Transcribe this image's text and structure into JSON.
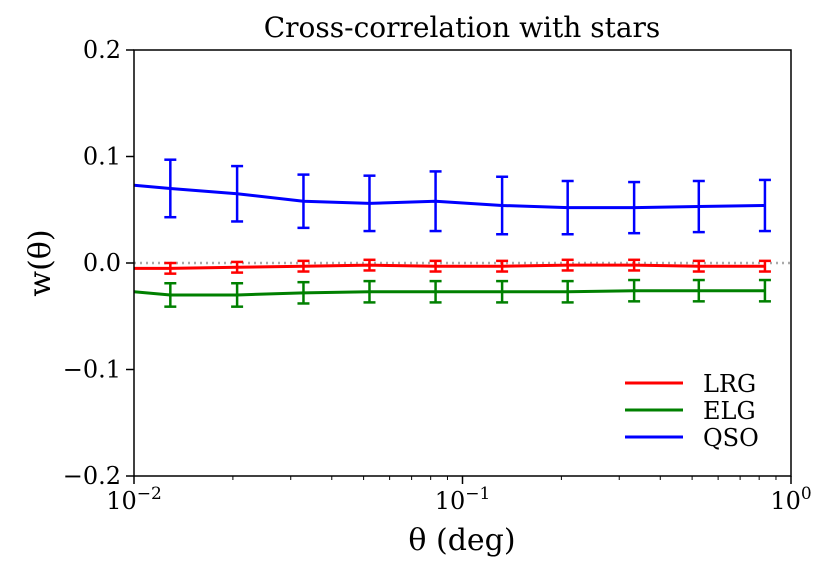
{
  "chart_data": {
    "type": "line",
    "title": "Cross-correlation with stars",
    "xlabel": "θ  (deg)",
    "ylabel": "w(θ)",
    "xscale": "log",
    "xlim": [
      0.01,
      1
    ],
    "ylim": [
      -0.2,
      0.2
    ],
    "x_ticks": [
      {
        "value": 0.01,
        "base": "10",
        "exp": "−2"
      },
      {
        "value": 0.1,
        "base": "10",
        "exp": "−1"
      },
      {
        "value": 1,
        "base": "10",
        "exp": "0"
      }
    ],
    "y_ticks": [
      {
        "value": 0.2,
        "label": "0.2"
      },
      {
        "value": 0.1,
        "label": "0.1"
      },
      {
        "value": 0.0,
        "label": "0.0"
      },
      {
        "value": -0.1,
        "label": "−0.1"
      },
      {
        "value": -0.2,
        "label": "−0.2"
      }
    ],
    "reference_line": {
      "y": 0.0,
      "style": "dotted",
      "color": "#aaaaaa"
    },
    "line_start_x": 0.01,
    "x_errbars": [
      0.0129,
      0.0206,
      0.0328,
      0.0521,
      0.0828,
      0.132,
      0.209,
      0.333,
      0.524,
      0.833
    ],
    "series": [
      {
        "name": "LRG",
        "color": "#ff0000",
        "start_y": -0.005,
        "values": [
          -0.005,
          -0.004,
          -0.003,
          -0.002,
          -0.003,
          -0.003,
          -0.002,
          -0.002,
          -0.003,
          -0.003
        ],
        "errors": [
          0.005,
          0.005,
          0.005,
          0.005,
          0.005,
          0.005,
          0.005,
          0.005,
          0.005,
          0.005
        ]
      },
      {
        "name": "ELG",
        "color": "#008000",
        "start_y": -0.027,
        "values": [
          -0.03,
          -0.03,
          -0.028,
          -0.027,
          -0.027,
          -0.027,
          -0.027,
          -0.026,
          -0.026,
          -0.026
        ],
        "errors": [
          0.011,
          0.011,
          0.01,
          0.01,
          0.01,
          0.01,
          0.01,
          0.01,
          0.01,
          0.01
        ]
      },
      {
        "name": "QSO",
        "color": "#0000ff",
        "start_y": 0.073,
        "values": [
          0.07,
          0.065,
          0.058,
          0.056,
          0.058,
          0.054,
          0.052,
          0.052,
          0.053,
          0.054
        ],
        "errors": [
          0.027,
          0.026,
          0.025,
          0.026,
          0.028,
          0.027,
          0.025,
          0.024,
          0.024,
          0.024
        ]
      }
    ],
    "legend": {
      "position": "lower right",
      "entries": [
        "LRG",
        "ELG",
        "QSO"
      ]
    }
  }
}
